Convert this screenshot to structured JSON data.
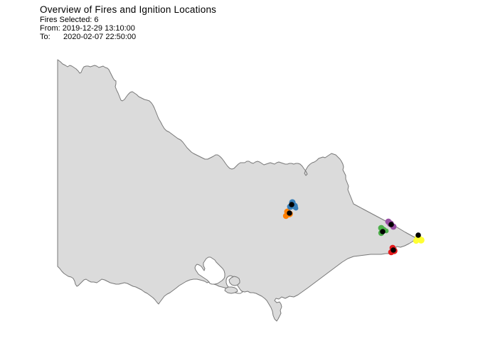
{
  "title": "Overview of Fires and Ignition Locations",
  "info_lines": [
    "Fires Selected: 6",
    "From: 2019-12-29 13:10:00",
    "To:      2020-02-07 22:50:00"
  ],
  "map": {
    "region": "Victoria, Australia",
    "land_fill": "#DBDBDB",
    "outline_color": "#787878",
    "background": "#FFFFFF"
  },
  "fires": [
    {
      "name": "fire-orange",
      "color": "#FF7F00",
      "blob": [
        [
          404,
          298,
          4.5
        ],
        [
          407,
          301,
          4.8
        ],
        [
          402,
          304,
          4.2
        ]
      ],
      "ignition": [
        407,
        300
      ]
    },
    {
      "name": "fire-blue",
      "color": "#377EB8",
      "blob": [
        [
          411,
          285,
          4.6
        ],
        [
          414,
          290,
          4.8
        ],
        [
          408,
          291,
          4.4
        ],
        [
          416,
          293,
          3.4
        ]
      ],
      "ignition": [
        410,
        288
      ]
    },
    {
      "name": "fire-green",
      "color": "#4DAF4A",
      "blob": [
        [
          536,
          321,
          4.4
        ],
        [
          539,
          324,
          4.8
        ],
        [
          536,
          328,
          4.2
        ],
        [
          543,
          325,
          3.4
        ]
      ],
      "ignition": [
        538,
        326
      ]
    },
    {
      "name": "fire-purple",
      "color": "#984EA3",
      "blob": [
        [
          546,
          312,
          4.4
        ],
        [
          549,
          315,
          4.8
        ],
        [
          553,
          319,
          4.4
        ]
      ],
      "ignition": [
        550,
        316
      ]
    },
    {
      "name": "fire-red",
      "color": "#E41A1C",
      "blob": [
        [
          552,
          349,
          4.4
        ],
        [
          554,
          353,
          4.8
        ],
        [
          550,
          355,
          4.3
        ]
      ],
      "ignition": [
        553,
        352
      ]
    },
    {
      "name": "fire-yellow",
      "color": "#FFFF33",
      "blob": [
        [
          588,
          335,
          5.0
        ],
        [
          592,
          338,
          4.8
        ],
        [
          585,
          339,
          4.2
        ]
      ],
      "ignition": [
        588,
        331
      ]
    }
  ],
  "ignition": {
    "color": "#000000",
    "radius": 3.8
  }
}
